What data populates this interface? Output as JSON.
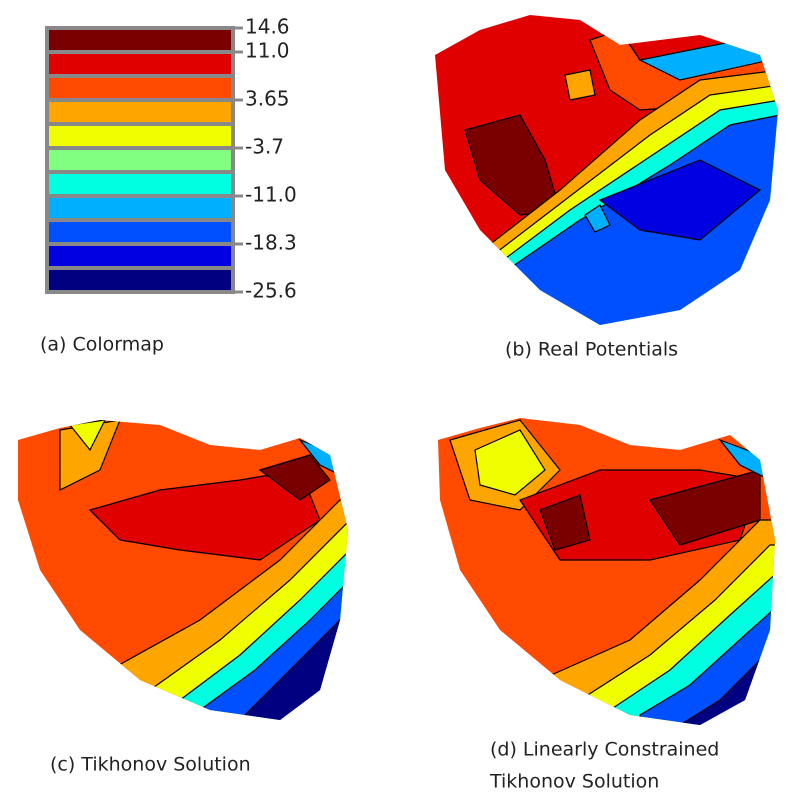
{
  "colormap": {
    "colors": [
      "#7a0000",
      "#e00000",
      "#ff4a00",
      "#ffa500",
      "#f0ff00",
      "#80ff80",
      "#00ffe0",
      "#00b0ff",
      "#0050ff",
      "#0000e0",
      "#000080"
    ],
    "labels": [
      "14.6",
      "11.0",
      "3.65",
      "-3.7",
      "-11.0",
      "-18.3",
      "-25.6"
    ]
  },
  "captions": {
    "a": "(a) Colormap",
    "b": "(b) Real Potentials",
    "c": "(c) Tikhonov Solution",
    "d_line1": "(d) Linearly Constrained",
    "d_line2": "Tikhonov Solution"
  }
}
